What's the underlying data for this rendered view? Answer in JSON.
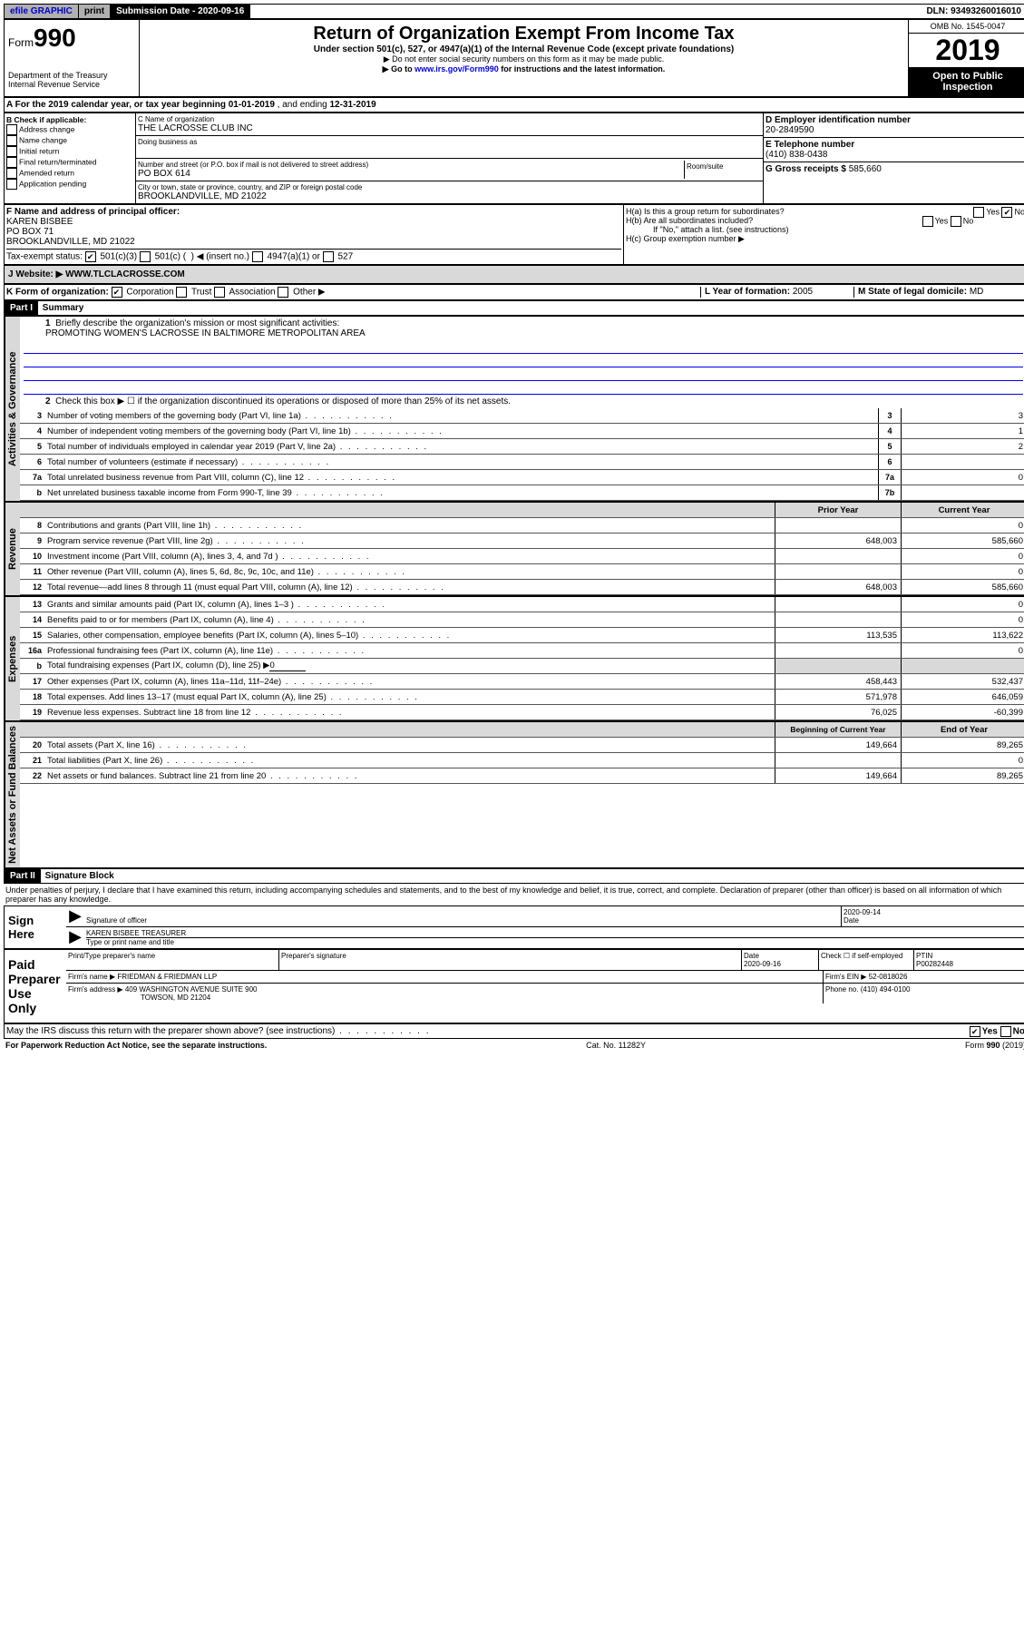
{
  "topbar": {
    "efile": "efile GRAPHIC",
    "print": "print",
    "subdate_label": "Submission Date - ",
    "subdate": "2020-09-16",
    "dln_label": "DLN: ",
    "dln": "93493260016010"
  },
  "header": {
    "form_label": "Form",
    "form_number": "990",
    "dept": "Department of the Treasury\nInternal Revenue Service",
    "title": "Return of Organization Exempt From Income Tax",
    "subtitle": "Under section 501(c), 527, or 4947(a)(1) of the Internal Revenue Code (except private foundations)",
    "note1": "▶ Do not enter social security numbers on this form as it may be made public.",
    "note2_pre": "▶ Go to ",
    "note2_link": "www.irs.gov/Form990",
    "note2_post": " for instructions and the latest information.",
    "omb": "OMB No. 1545-0047",
    "year": "2019",
    "inspection": "Open to Public Inspection"
  },
  "sectionA": {
    "text_pre": "A For the 2019 calendar year, or tax year beginning ",
    "begin": "01-01-2019",
    "mid": " , and ending ",
    "end": "12-31-2019"
  },
  "sectionB": {
    "label": "B Check if applicable:",
    "items": [
      "Address change",
      "Name change",
      "Initial return",
      "Final return/terminated",
      "Amended return",
      "Application pending"
    ]
  },
  "sectionC": {
    "name_label": "C Name of organization",
    "name": "THE LACROSSE CLUB INC",
    "dba_label": "Doing business as",
    "addr_label": "Number and street (or P.O. box if mail is not delivered to street address)",
    "addr": "PO BOX 614",
    "room_label": "Room/suite",
    "city_label": "City or town, state or province, country, and ZIP or foreign postal code",
    "city": "BROOKLANDVILLE, MD  21022"
  },
  "sectionD": {
    "label": "D Employer identification number",
    "value": "20-2849590"
  },
  "sectionE": {
    "label": "E Telephone number",
    "value": "(410) 838-0438"
  },
  "sectionG": {
    "label": "G Gross receipts $ ",
    "value": "585,660"
  },
  "sectionF": {
    "label": "F Name and address of principal officer:",
    "name": "KAREN BISBEE",
    "addr1": "PO BOX 71",
    "addr2": "BROOKLANDVILLE, MD  21022"
  },
  "sectionH": {
    "ha": "H(a)  Is this a group return for subordinates?",
    "hb": "H(b)  Are all subordinates included?",
    "hb_note": "If \"No,\" attach a list. (see instructions)",
    "hc": "H(c)  Group exemption number ▶",
    "yes": "Yes",
    "no": "No"
  },
  "sectionI": {
    "label": "Tax-exempt status:",
    "opt1": "501(c)(3)",
    "opt2_pre": "501(c) (",
    "opt2_post": ") ◀ (insert no.)",
    "opt3": "4947(a)(1) or",
    "opt4": "527"
  },
  "sectionJ": {
    "label": "J    Website: ▶",
    "value": "WWW.TLCLACROSSE.COM"
  },
  "sectionK": {
    "label": "K Form of organization:",
    "corp": "Corporation",
    "trust": "Trust",
    "assoc": "Association",
    "other": "Other ▶"
  },
  "sectionL": {
    "label": "L Year of formation: ",
    "value": "2005"
  },
  "sectionM": {
    "label": "M State of legal domicile: ",
    "value": "MD"
  },
  "part1": {
    "header": "Part I",
    "title": "Summary",
    "vert_gov": "Activities & Governance",
    "vert_rev": "Revenue",
    "vert_exp": "Expenses",
    "vert_net": "Net Assets or Fund Balances",
    "l1": "Briefly describe the organization's mission or most significant activities:",
    "mission": "PROMOTING WOMEN'S LACROSSE IN BALTIMORE METROPOLITAN AREA",
    "l2": "Check this box ▶ ☐  if the organization discontinued its operations or disposed of more than 25% of its net assets.",
    "lines_gov": [
      {
        "n": "3",
        "desc": "Number of voting members of the governing body (Part VI, line 1a)",
        "box": "3",
        "val": "3"
      },
      {
        "n": "4",
        "desc": "Number of independent voting members of the governing body (Part VI, line 1b)",
        "box": "4",
        "val": "1"
      },
      {
        "n": "5",
        "desc": "Total number of individuals employed in calendar year 2019 (Part V, line 2a)",
        "box": "5",
        "val": "2"
      },
      {
        "n": "6",
        "desc": "Total number of volunteers (estimate if necessary)",
        "box": "6",
        "val": ""
      },
      {
        "n": "7a",
        "desc": "Total unrelated business revenue from Part VIII, column (C), line 12",
        "box": "7a",
        "val": "0"
      },
      {
        "n": "b",
        "desc": "Net unrelated business taxable income from Form 990-T, line 39",
        "box": "7b",
        "val": ""
      }
    ],
    "col_prior": "Prior Year",
    "col_current": "Current Year",
    "lines_rev": [
      {
        "n": "8",
        "desc": "Contributions and grants (Part VIII, line 1h)",
        "prior": "",
        "curr": "0"
      },
      {
        "n": "9",
        "desc": "Program service revenue (Part VIII, line 2g)",
        "prior": "648,003",
        "curr": "585,660"
      },
      {
        "n": "10",
        "desc": "Investment income (Part VIII, column (A), lines 3, 4, and 7d )",
        "prior": "",
        "curr": "0"
      },
      {
        "n": "11",
        "desc": "Other revenue (Part VIII, column (A), lines 5, 6d, 8c, 9c, 10c, and 11e)",
        "prior": "",
        "curr": "0"
      },
      {
        "n": "12",
        "desc": "Total revenue—add lines 8 through 11 (must equal Part VIII, column (A), line 12)",
        "prior": "648,003",
        "curr": "585,660"
      }
    ],
    "lines_exp": [
      {
        "n": "13",
        "desc": "Grants and similar amounts paid (Part IX, column (A), lines 1–3 )",
        "prior": "",
        "curr": "0"
      },
      {
        "n": "14",
        "desc": "Benefits paid to or for members (Part IX, column (A), line 4)",
        "prior": "",
        "curr": "0"
      },
      {
        "n": "15",
        "desc": "Salaries, other compensation, employee benefits (Part IX, column (A), lines 5–10)",
        "prior": "113,535",
        "curr": "113,622"
      },
      {
        "n": "16a",
        "desc": "Professional fundraising fees (Part IX, column (A), line 11e)",
        "prior": "",
        "curr": "0"
      }
    ],
    "l16b": "Total fundraising expenses (Part IX, column (D), line 25) ▶",
    "l16b_val": "0",
    "lines_exp2": [
      {
        "n": "17",
        "desc": "Other expenses (Part IX, column (A), lines 11a–11d, 11f–24e)",
        "prior": "458,443",
        "curr": "532,437"
      },
      {
        "n": "18",
        "desc": "Total expenses. Add lines 13–17 (must equal Part IX, column (A), line 25)",
        "prior": "571,978",
        "curr": "646,059"
      },
      {
        "n": "19",
        "desc": "Revenue less expenses. Subtract line 18 from line 12",
        "prior": "76,025",
        "curr": "-60,399"
      }
    ],
    "col_begin": "Beginning of Current Year",
    "col_end": "End of Year",
    "lines_net": [
      {
        "n": "20",
        "desc": "Total assets (Part X, line 16)",
        "prior": "149,664",
        "curr": "89,265"
      },
      {
        "n": "21",
        "desc": "Total liabilities (Part X, line 26)",
        "prior": "",
        "curr": "0"
      },
      {
        "n": "22",
        "desc": "Net assets or fund balances. Subtract line 21 from line 20",
        "prior": "149,664",
        "curr": "89,265"
      }
    ]
  },
  "part2": {
    "header": "Part II",
    "title": "Signature Block",
    "declaration": "Under penalties of perjury, I declare that I have examined this return, including accompanying schedules and statements, and to the best of my knowledge and belief, it is true, correct, and complete. Declaration of preparer (other than officer) is based on all information of which preparer has any knowledge.",
    "sign_here": "Sign Here",
    "sig_officer_label": "Signature of officer",
    "sig_date": "2020-09-14",
    "date_label": "Date",
    "officer_name": "KAREN BISBEE TREASURER",
    "officer_name_label": "Type or print name and title",
    "paid": "Paid Preparer Use Only",
    "prep_name_label": "Print/Type preparer's name",
    "prep_sig_label": "Preparer's signature",
    "prep_date": "2020-09-16",
    "check_self": "Check ☐ if self-employed",
    "ptin_label": "PTIN",
    "ptin": "P00282448",
    "firm_name_label": "Firm's name    ▶",
    "firm_name": "FRIEDMAN & FRIEDMAN LLP",
    "firm_ein_label": "Firm's EIN ▶",
    "firm_ein": "52-0818026",
    "firm_addr_label": "Firm's address ▶",
    "firm_addr1": "409 WASHINGTON AVENUE SUITE 900",
    "firm_addr2": "TOWSON, MD  21204",
    "phone_label": "Phone no. ",
    "phone": "(410) 494-0100",
    "discuss": "May the IRS discuss this return with the preparer shown above? (see instructions)"
  },
  "footer": {
    "left": "For Paperwork Reduction Act Notice, see the separate instructions.",
    "mid": "Cat. No. 11282Y",
    "right": "Form 990 (2019)"
  }
}
